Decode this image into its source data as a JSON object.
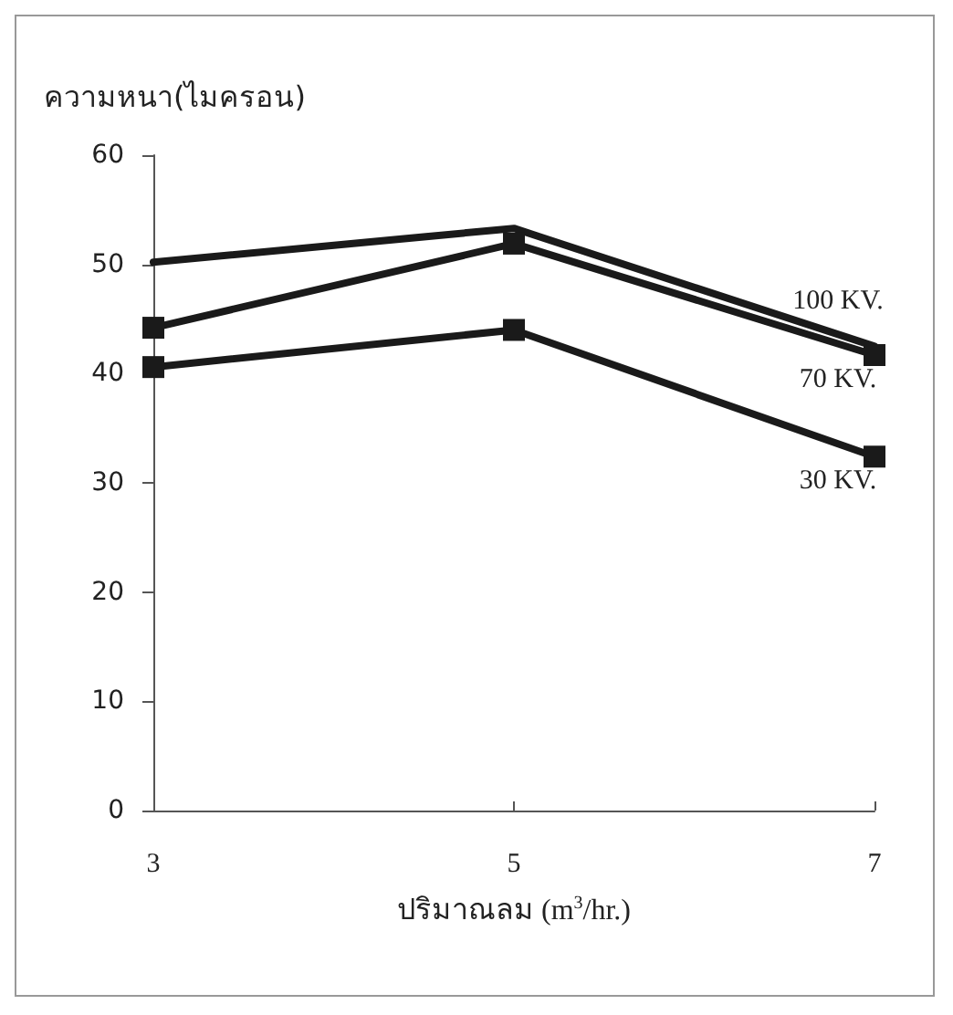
{
  "chart_data": {
    "type": "line",
    "xlabel": "ปริมาณลม (m$^{3}$/hr.)",
    "ylabel": "ความหนา(ไมครอน)",
    "x": [
      3,
      5,
      7
    ],
    "xlim": [
      3,
      7
    ],
    "xticks": [
      3,
      5,
      7
    ],
    "ylim": [
      0,
      60
    ],
    "yticks": [
      0,
      10,
      20,
      30,
      40,
      50,
      60
    ],
    "grid": false,
    "legend": false,
    "line_style": "solid",
    "series": [
      {
        "name": "100 KV.",
        "color": "#1a1a1a",
        "marker": "none",
        "values": [
          50.2,
          53.3,
          42.5
        ]
      },
      {
        "name": "70 KV.",
        "color": "#1a1a1a",
        "marker": "square",
        "values": [
          44.2,
          51.9,
          41.7
        ]
      },
      {
        "name": "30 KV.",
        "color": "#1a1a1a",
        "marker": "square",
        "values": [
          40.6,
          44.0,
          32.4
        ]
      }
    ]
  }
}
